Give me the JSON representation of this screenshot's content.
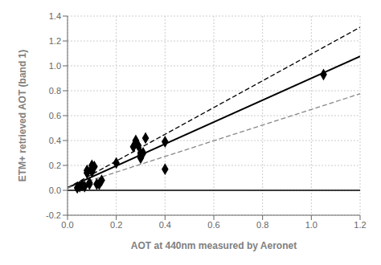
{
  "chart_data": {
    "type": "scatter",
    "xlabel": "AOT at 440nm measured by Aeronet",
    "ylabel": "ETM+ retrieved AOT (band 1)",
    "xlim": [
      0,
      1.2
    ],
    "ylim": [
      -0.2,
      1.4
    ],
    "xticks": [
      {
        "value": 0,
        "label": "0.0"
      },
      0.2,
      0.4,
      0.6,
      0.8,
      {
        "value": 1.0,
        "label": "1.0"
      },
      1.2
    ],
    "yticks": [
      -0.2,
      {
        "value": 0,
        "label": "0.0"
      },
      0.2,
      0.4,
      0.6,
      0.8,
      {
        "value": 1.0,
        "label": "1.0"
      },
      1.2,
      1.4
    ],
    "grid": true,
    "hlines": [
      0
    ],
    "series": [
      {
        "type": "line",
        "line_style": "dashed",
        "color": "#000000",
        "x": [
          0.0,
          1.2
        ],
        "values": [
          0.02,
          1.31
        ]
      },
      {
        "type": "line",
        "line_style": "solid",
        "color": "#000000",
        "x": [
          0.0,
          1.2
        ],
        "values": [
          0.02,
          1.076
        ]
      },
      {
        "type": "line",
        "line_style": "dashed",
        "color": "#888888",
        "x": [
          0.0,
          1.2
        ],
        "values": [
          0.02,
          0.776
        ]
      },
      {
        "type": "scatter",
        "marker": "diamond",
        "color": "#000000",
        "x": [
          0.04,
          0.05,
          0.06,
          0.07,
          0.08,
          0.08,
          0.09,
          0.09,
          0.1,
          0.1,
          0.1,
          0.11,
          0.12,
          0.13,
          0.14,
          0.2,
          0.27,
          0.28,
          0.28,
          0.29,
          0.3,
          0.3,
          0.3,
          0.31,
          0.32,
          0.4,
          0.4,
          1.05
        ],
        "values": [
          0.02,
          0.03,
          0.04,
          0.03,
          0.14,
          0.16,
          0.05,
          0.06,
          0.15,
          0.18,
          0.2,
          0.19,
          0.05,
          0.05,
          0.08,
          0.22,
          0.35,
          0.38,
          0.4,
          0.36,
          0.26,
          0.28,
          0.3,
          0.3,
          0.42,
          0.17,
          0.39,
          0.93
        ]
      }
    ]
  }
}
